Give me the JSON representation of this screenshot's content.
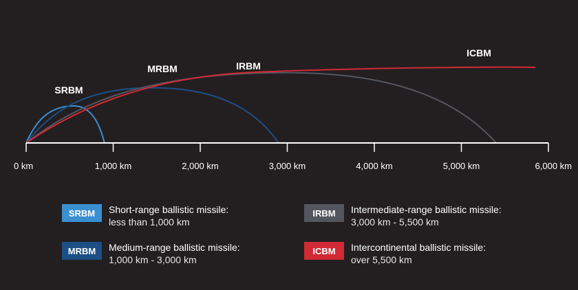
{
  "colors": {
    "background": "#231f20",
    "axis": "#ffffff",
    "SRBM": "#3a8fd1",
    "MRBM": "#1d4f86",
    "IRBM": "#54565f",
    "ICBM": "#d12a36"
  },
  "axis": {
    "ticks": [
      0,
      1000,
      2000,
      3000,
      4000,
      5000,
      6000
    ],
    "tick_labels": [
      "0 km",
      "1,000 km",
      "2,000 km",
      "3,000 km",
      "4,000 km",
      "5,000 km",
      "6,000 km"
    ]
  },
  "arcs": [
    {
      "label": "SRBM",
      "range_km": 900,
      "apex_km": 550,
      "apex_height": 0.49
    },
    {
      "label": "MRBM",
      "range_km": 2900,
      "apex_km": 1450,
      "apex_height": 0.73
    },
    {
      "label": "IRBM",
      "range_km": 5400,
      "apex_km": 3000,
      "apex_height": 0.93
    },
    {
      "label": "ICBM",
      "range_km": 5850,
      "apex_km": 5850,
      "apex_height": 1.0
    }
  ],
  "legend": [
    {
      "code": "SRBM",
      "title": "Short-range ballistic missile:",
      "desc": "less than 1,000 km"
    },
    {
      "code": "MRBM",
      "title": "Medium-range ballistic missile:",
      "desc": "1,000 km - 3,000 km"
    },
    {
      "code": "IRBM",
      "title": "Intermediate-range ballistic missile:",
      "desc": "3,000 km - 5,500 km"
    },
    {
      "code": "ICBM",
      "title": "Intercontinental ballistic missile:",
      "desc": "over 5,500 km"
    }
  ]
}
